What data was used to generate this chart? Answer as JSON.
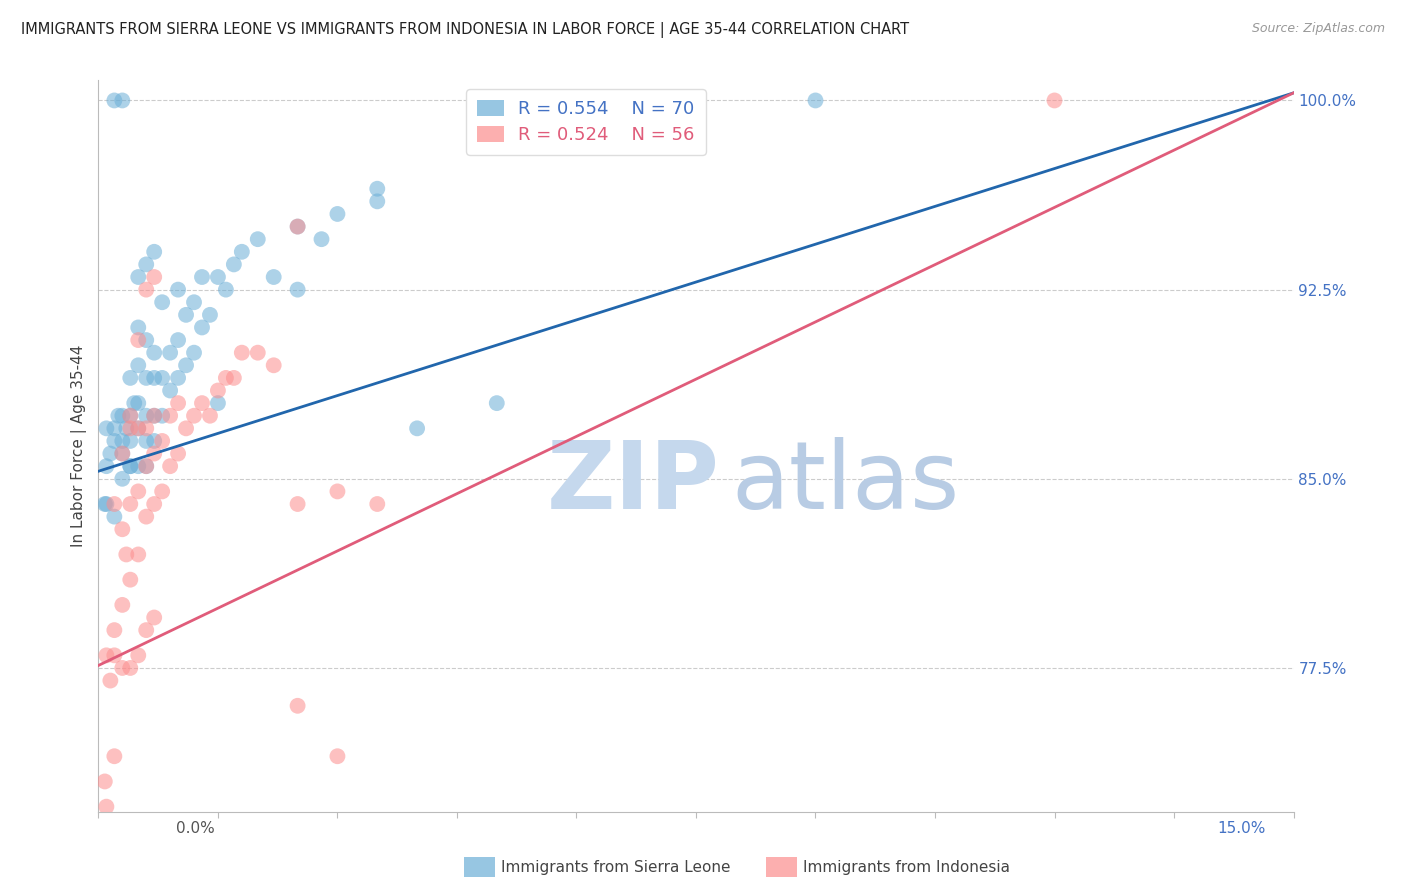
{
  "title": "IMMIGRANTS FROM SIERRA LEONE VS IMMIGRANTS FROM INDONESIA IN LABOR FORCE | AGE 35-44 CORRELATION CHART",
  "source": "Source: ZipAtlas.com",
  "ylabel": "In Labor Force | Age 35-44",
  "ytick_labels": [
    "77.5%",
    "85.0%",
    "92.5%",
    "100.0%"
  ],
  "ytick_values": [
    0.775,
    0.85,
    0.925,
    1.0
  ],
  "xmin": 0.0,
  "xmax": 0.15,
  "ymin": 0.718,
  "ymax": 1.008,
  "sierra_leone_color": "#6baed6",
  "indonesia_color": "#fc8d8d",
  "sierra_leone_line_color": "#2166ac",
  "indonesia_line_color": "#e05c7a",
  "sierra_leone_R": 0.554,
  "sierra_leone_N": 70,
  "indonesia_R": 0.524,
  "indonesia_N": 56,
  "legend_label_1": "Immigrants from Sierra Leone",
  "legend_label_2": "Immigrants from Indonesia",
  "sl_line_x0": 0.0,
  "sl_line_y0": 0.853,
  "sl_line_x1": 0.15,
  "sl_line_y1": 1.003,
  "ind_line_x0": 0.0,
  "ind_line_y0": 0.776,
  "ind_line_x1": 0.15,
  "ind_line_y1": 1.003,
  "sl_x": [
    0.0008,
    0.001,
    0.001,
    0.0015,
    0.002,
    0.002,
    0.002,
    0.0025,
    0.003,
    0.003,
    0.003,
    0.003,
    0.0035,
    0.004,
    0.004,
    0.004,
    0.004,
    0.0045,
    0.005,
    0.005,
    0.005,
    0.005,
    0.005,
    0.006,
    0.006,
    0.006,
    0.006,
    0.006,
    0.007,
    0.007,
    0.007,
    0.007,
    0.008,
    0.008,
    0.008,
    0.009,
    0.009,
    0.01,
    0.01,
    0.01,
    0.011,
    0.011,
    0.012,
    0.012,
    0.013,
    0.013,
    0.014,
    0.015,
    0.015,
    0.016,
    0.017,
    0.018,
    0.02,
    0.022,
    0.025,
    0.028,
    0.03,
    0.035,
    0.04,
    0.05,
    0.001,
    0.002,
    0.003,
    0.004,
    0.005,
    0.006,
    0.007,
    0.025,
    0.035,
    0.09
  ],
  "sl_y": [
    0.84,
    0.855,
    0.87,
    0.86,
    0.835,
    0.865,
    1.0,
    0.875,
    0.85,
    0.86,
    0.875,
    1.0,
    0.87,
    0.855,
    0.865,
    0.875,
    0.89,
    0.88,
    0.855,
    0.87,
    0.88,
    0.895,
    0.91,
    0.855,
    0.865,
    0.875,
    0.89,
    0.905,
    0.865,
    0.875,
    0.89,
    0.9,
    0.875,
    0.89,
    0.92,
    0.885,
    0.9,
    0.89,
    0.905,
    0.925,
    0.895,
    0.915,
    0.9,
    0.92,
    0.91,
    0.93,
    0.915,
    0.88,
    0.93,
    0.925,
    0.935,
    0.94,
    0.945,
    0.93,
    0.95,
    0.945,
    0.955,
    0.965,
    0.87,
    0.88,
    0.84,
    0.87,
    0.865,
    0.855,
    0.93,
    0.935,
    0.94,
    0.925,
    0.96,
    1.0
  ],
  "ind_x": [
    0.0008,
    0.001,
    0.001,
    0.0015,
    0.002,
    0.002,
    0.002,
    0.003,
    0.003,
    0.003,
    0.0035,
    0.004,
    0.004,
    0.004,
    0.005,
    0.005,
    0.005,
    0.006,
    0.006,
    0.006,
    0.007,
    0.007,
    0.007,
    0.008,
    0.008,
    0.009,
    0.009,
    0.01,
    0.01,
    0.011,
    0.012,
    0.013,
    0.014,
    0.015,
    0.016,
    0.017,
    0.018,
    0.02,
    0.022,
    0.025,
    0.03,
    0.035,
    0.002,
    0.003,
    0.004,
    0.005,
    0.006,
    0.007,
    0.025,
    0.03,
    0.004,
    0.005,
    0.006,
    0.007,
    0.025,
    0.12
  ],
  "ind_y": [
    0.73,
    0.72,
    0.78,
    0.77,
    0.74,
    0.79,
    0.84,
    0.8,
    0.83,
    0.86,
    0.82,
    0.81,
    0.84,
    0.87,
    0.82,
    0.845,
    0.87,
    0.835,
    0.855,
    0.87,
    0.84,
    0.86,
    0.875,
    0.845,
    0.865,
    0.855,
    0.875,
    0.86,
    0.88,
    0.87,
    0.875,
    0.88,
    0.875,
    0.885,
    0.89,
    0.89,
    0.9,
    0.9,
    0.895,
    0.84,
    0.845,
    0.84,
    0.78,
    0.775,
    0.775,
    0.78,
    0.79,
    0.795,
    0.76,
    0.74,
    0.875,
    0.905,
    0.925,
    0.93,
    0.95,
    1.0
  ]
}
